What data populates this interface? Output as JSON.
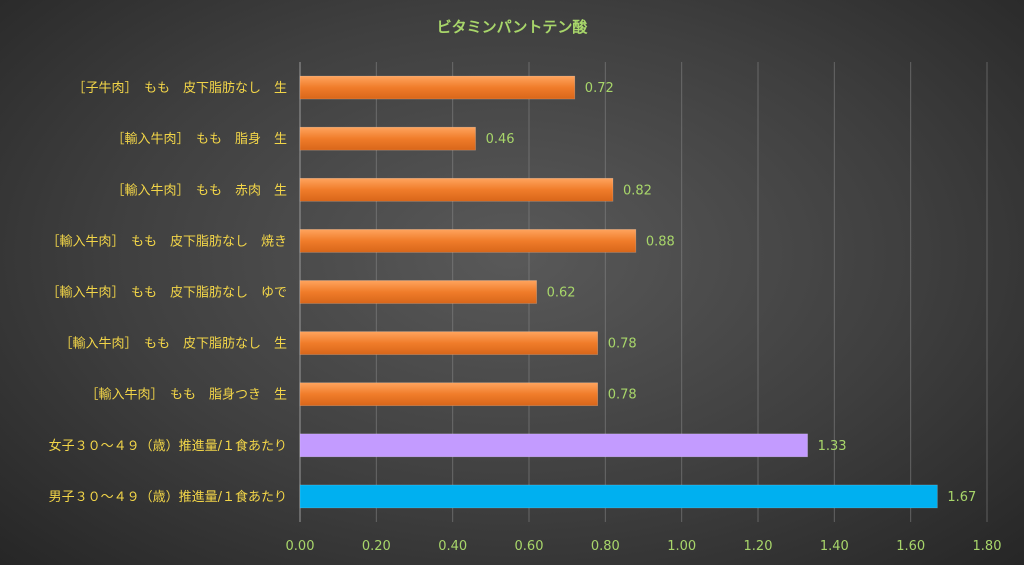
{
  "chart_data": {
    "type": "bar",
    "orientation": "horizontal",
    "title": "ビタミンパントテン酸",
    "xlabel": "",
    "ylabel": "",
    "xlim": [
      0,
      1.8
    ],
    "x_ticks": [
      "0.00",
      "0.20",
      "0.40",
      "0.60",
      "0.80",
      "1.00",
      "1.20",
      "1.40",
      "1.60",
      "1.80"
    ],
    "grid": true,
    "legend": "none",
    "categories": [
      "［子牛肉］　もも　皮下脂肪なし　生",
      "［輸入牛肉］　もも　脂身　生",
      "［輸入牛肉］　もも　赤肉　生",
      "［輸入牛肉］　もも　皮下脂肪なし　焼き",
      "［輸入牛肉］　もも　皮下脂肪なし　ゆで",
      "［輸入牛肉］　もも　皮下脂肪なし　生",
      "［輸入牛肉］　もも　脂身つき　生",
      "女子３０～４９（歳）推進量/１食あたり",
      "男子３０～４９（歳）推進量/１食あたり"
    ],
    "values": [
      0.72,
      0.46,
      0.82,
      0.88,
      0.62,
      0.78,
      0.78,
      1.33,
      1.67
    ],
    "value_labels": [
      "0.72",
      "0.46",
      "0.82",
      "0.88",
      "0.62",
      "0.78",
      "0.78",
      "1.33",
      "1.67"
    ],
    "bar_colors": [
      "#f07c2a",
      "#f07c2a",
      "#f07c2a",
      "#f07c2a",
      "#f07c2a",
      "#f07c2a",
      "#f07c2a",
      "#c39bff",
      "#00b0f0"
    ]
  },
  "colors": {
    "title": "#a8d66a",
    "category_label": "#f2d548",
    "value_label": "#a8d66a",
    "tick_label": "#a8d66a"
  }
}
